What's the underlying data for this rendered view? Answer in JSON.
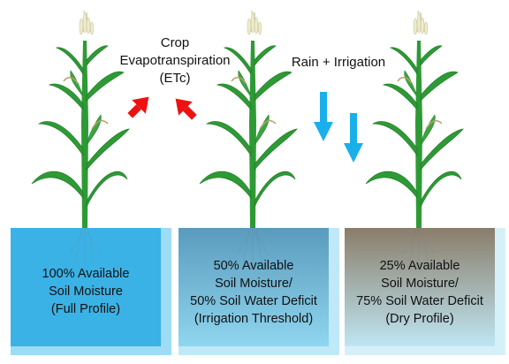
{
  "colors": {
    "leaf": "#2e9a35",
    "leaf_dark": "#1f7a27",
    "tassel": "#e8e6c8",
    "evap_arrow": "#ee1111",
    "rain_arrow": "#19b0ea"
  },
  "labels": {
    "etc": [
      "Crop",
      "Evapotranspiration",
      "(ETc)"
    ],
    "rain": "Rain + Irrigation"
  },
  "profiles": [
    {
      "lines": [
        "100% Available",
        "Soil Moisture",
        "(Full Profile)"
      ],
      "top_color": "#3bb2e6",
      "bottom_color": "#3bb2e6",
      "edge_color": "#9ddcf5"
    },
    {
      "lines": [
        "50% Available",
        "Soil Moisture/",
        "50% Soil Water Deficit",
        "(Irrigation Threshold)"
      ],
      "top_color": "#5a9bbd",
      "bottom_color": "#8fd6ef",
      "edge_color": "#bfe9f8"
    },
    {
      "lines": [
        "25% Available",
        "Soil Moisture/",
        "75% Soil Water Deficit",
        "(Dry Profile)"
      ],
      "top_color": "#8a7d6a",
      "bottom_color": "#bfe6f3",
      "edge_color": "#d6f0f9"
    }
  ]
}
